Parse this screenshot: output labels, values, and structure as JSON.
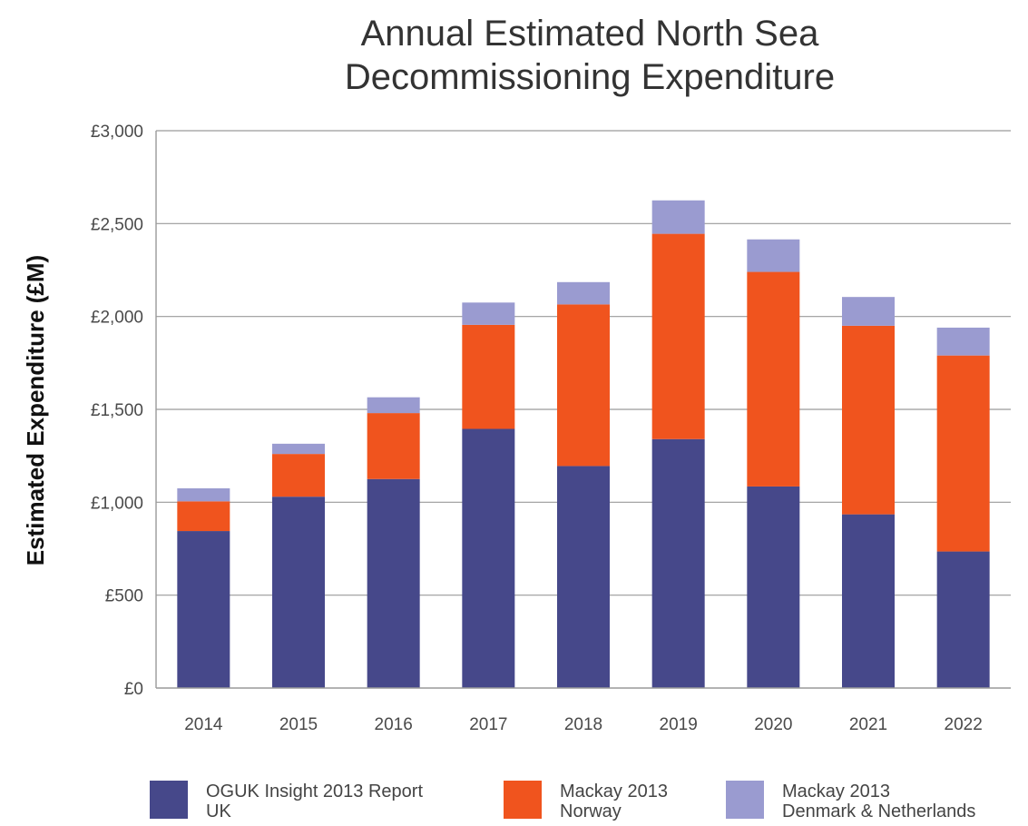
{
  "chart_data": {
    "type": "bar",
    "stacked": true,
    "title": [
      "Annual Estimated North Sea",
      "Decommissioning Expenditure"
    ],
    "xlabel": "",
    "ylabel": "Estimated Expenditure (£M)",
    "ylim": [
      0,
      3000
    ],
    "yticks": [
      0,
      500,
      1000,
      1500,
      2000,
      2500,
      3000
    ],
    "ytick_labels": [
      "£0",
      "£500",
      "£1,000",
      "£1,500",
      "£2,000",
      "£2,500",
      "£3,000"
    ],
    "grid": true,
    "legend_position": "bottom",
    "categories": [
      "2014",
      "2015",
      "2016",
      "2017",
      "2018",
      "2019",
      "2020",
      "2021",
      "2022"
    ],
    "series": [
      {
        "name": [
          "OGUK Insight 2013 Report",
          "UK"
        ],
        "color": "#46488a",
        "values": [
          845,
          1030,
          1125,
          1395,
          1195,
          1340,
          1085,
          935,
          735
        ]
      },
      {
        "name": [
          "Mackay 2013",
          "Norway"
        ],
        "color": "#f0541e",
        "values": [
          160,
          230,
          355,
          560,
          870,
          1105,
          1155,
          1015,
          1055
        ]
      },
      {
        "name": [
          "Mackay 2013",
          "Denmark & Netherlands"
        ],
        "color": "#9a9bd0",
        "values": [
          70,
          55,
          85,
          120,
          120,
          180,
          175,
          155,
          150
        ]
      }
    ]
  }
}
